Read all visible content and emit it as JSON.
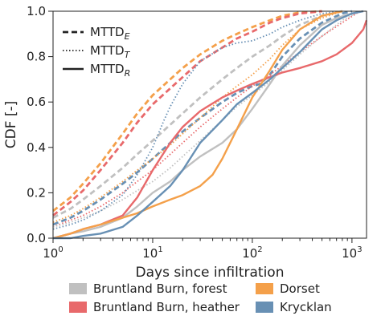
{
  "chart_data": {
    "type": "line",
    "xlabel": "Days since infiltration",
    "ylabel": "CDF [-]",
    "xscale": "log",
    "xlim": [
      1,
      1400
    ],
    "ylim": [
      0,
      1.0
    ],
    "xticks": [
      1,
      10,
      100,
      1000
    ],
    "xtick_labels": [
      {
        "base": "10",
        "exp": "0"
      },
      {
        "base": "10",
        "exp": "1"
      },
      {
        "base": "10",
        "exp": "2"
      },
      {
        "base": "10",
        "exp": "3"
      }
    ],
    "yticks": [
      "0.0",
      "0.2",
      "0.4",
      "0.6",
      "0.8",
      "1.0"
    ],
    "grid": false,
    "style_legend": [
      {
        "base": "MTTD",
        "sub": "E",
        "dash": "dashed"
      },
      {
        "base": "MTTD",
        "sub": "T",
        "dash": "dotted"
      },
      {
        "base": "MTTD",
        "sub": "R",
        "dash": "solid"
      }
    ],
    "color_legend": [
      {
        "label": "Bruntland Burn, forest",
        "color": "#c0c0c0"
      },
      {
        "label": "Bruntland Burn, heather",
        "color": "#e8696b"
      },
      {
        "label": "Dorset",
        "color": "#f4a04a"
      },
      {
        "label": "Krycklan",
        "color": "#6890b4"
      }
    ],
    "series": [
      {
        "site": "Dorset",
        "dash": "dashed",
        "color": "#f4a04a",
        "points": [
          [
            1,
            0.12
          ],
          [
            1.5,
            0.18
          ],
          [
            2,
            0.24
          ],
          [
            3,
            0.33
          ],
          [
            5,
            0.46
          ],
          [
            7,
            0.55
          ],
          [
            10,
            0.63
          ],
          [
            15,
            0.7
          ],
          [
            20,
            0.75
          ],
          [
            30,
            0.81
          ],
          [
            50,
            0.87
          ],
          [
            70,
            0.9
          ],
          [
            100,
            0.93
          ],
          [
            150,
            0.96
          ],
          [
            200,
            0.98
          ],
          [
            300,
            0.995
          ],
          [
            500,
            1.0
          ]
        ]
      },
      {
        "site": "Bruntland Burn, heather",
        "dash": "dashed",
        "color": "#e8696b",
        "points": [
          [
            1,
            0.1
          ],
          [
            1.5,
            0.16
          ],
          [
            2,
            0.21
          ],
          [
            3,
            0.3
          ],
          [
            5,
            0.42
          ],
          [
            7,
            0.51
          ],
          [
            10,
            0.59
          ],
          [
            15,
            0.66
          ],
          [
            20,
            0.71
          ],
          [
            30,
            0.78
          ],
          [
            50,
            0.84
          ],
          [
            70,
            0.88
          ],
          [
            100,
            0.91
          ],
          [
            150,
            0.95
          ],
          [
            200,
            0.97
          ],
          [
            300,
            0.99
          ],
          [
            500,
            1.0
          ]
        ]
      },
      {
        "site": "Bruntland Burn, forest",
        "dash": "dashed",
        "color": "#c0c0c0",
        "points": [
          [
            1,
            0.09
          ],
          [
            1.5,
            0.13
          ],
          [
            2,
            0.17
          ],
          [
            3,
            0.23
          ],
          [
            5,
            0.31
          ],
          [
            7,
            0.37
          ],
          [
            10,
            0.43
          ],
          [
            15,
            0.5
          ],
          [
            20,
            0.55
          ],
          [
            30,
            0.62
          ],
          [
            50,
            0.7
          ],
          [
            70,
            0.75
          ],
          [
            100,
            0.8
          ],
          [
            150,
            0.85
          ],
          [
            200,
            0.89
          ],
          [
            300,
            0.94
          ],
          [
            500,
            0.98
          ],
          [
            800,
            1.0
          ]
        ]
      },
      {
        "site": "Krycklan",
        "dash": "dashed",
        "color": "#6890b4",
        "points": [
          [
            1,
            0.06
          ],
          [
            1.5,
            0.09
          ],
          [
            2,
            0.12
          ],
          [
            3,
            0.17
          ],
          [
            5,
            0.24
          ],
          [
            7,
            0.29
          ],
          [
            10,
            0.35
          ],
          [
            15,
            0.42
          ],
          [
            20,
            0.47
          ],
          [
            30,
            0.53
          ],
          [
            50,
            0.6
          ],
          [
            70,
            0.64
          ],
          [
            100,
            0.67
          ],
          [
            120,
            0.68
          ],
          [
            150,
            0.72
          ],
          [
            200,
            0.8
          ],
          [
            300,
            0.88
          ],
          [
            500,
            0.95
          ],
          [
            800,
            0.99
          ],
          [
            1000,
            1.0
          ]
        ]
      },
      {
        "site": "Dorset",
        "dash": "dotted",
        "color": "#f4a04a",
        "points": [
          [
            1,
            0.07
          ],
          [
            1.5,
            0.1
          ],
          [
            2,
            0.13
          ],
          [
            3,
            0.18
          ],
          [
            5,
            0.25
          ],
          [
            7,
            0.3
          ],
          [
            10,
            0.35
          ],
          [
            15,
            0.41
          ],
          [
            20,
            0.46
          ],
          [
            30,
            0.53
          ],
          [
            50,
            0.62
          ],
          [
            70,
            0.67
          ],
          [
            100,
            0.72
          ],
          [
            150,
            0.79
          ],
          [
            200,
            0.85
          ],
          [
            300,
            0.92
          ],
          [
            500,
            0.97
          ],
          [
            800,
            1.0
          ]
        ]
      },
      {
        "site": "Bruntland Burn, heather",
        "dash": "dotted",
        "color": "#e8696b",
        "points": [
          [
            1,
            0.05
          ],
          [
            1.5,
            0.08
          ],
          [
            2,
            0.1
          ],
          [
            3,
            0.14
          ],
          [
            5,
            0.2
          ],
          [
            7,
            0.25
          ],
          [
            10,
            0.3
          ],
          [
            15,
            0.37
          ],
          [
            20,
            0.42
          ],
          [
            30,
            0.49
          ],
          [
            50,
            0.57
          ],
          [
            70,
            0.62
          ],
          [
            100,
            0.67
          ],
          [
            150,
            0.72
          ],
          [
            200,
            0.76
          ],
          [
            300,
            0.82
          ],
          [
            500,
            0.89
          ],
          [
            800,
            0.95
          ],
          [
            1200,
            1.0
          ]
        ]
      },
      {
        "site": "Bruntland Burn, forest",
        "dash": "dotted",
        "color": "#c0c0c0",
        "points": [
          [
            1,
            0.05
          ],
          [
            1.5,
            0.07
          ],
          [
            2,
            0.09
          ],
          [
            3,
            0.12
          ],
          [
            5,
            0.17
          ],
          [
            7,
            0.21
          ],
          [
            10,
            0.25
          ],
          [
            15,
            0.31
          ],
          [
            20,
            0.36
          ],
          [
            30,
            0.43
          ],
          [
            50,
            0.52
          ],
          [
            70,
            0.58
          ],
          [
            100,
            0.63
          ],
          [
            150,
            0.69
          ],
          [
            200,
            0.74
          ],
          [
            300,
            0.81
          ],
          [
            500,
            0.89
          ],
          [
            800,
            0.96
          ],
          [
            1200,
            1.0
          ]
        ]
      },
      {
        "site": "Krycklan",
        "dash": "dotted",
        "color": "#6890b4",
        "points": [
          [
            1,
            0.04
          ],
          [
            1.5,
            0.06
          ],
          [
            2,
            0.08
          ],
          [
            3,
            0.12
          ],
          [
            5,
            0.19
          ],
          [
            7,
            0.28
          ],
          [
            10,
            0.4
          ],
          [
            13,
            0.52
          ],
          [
            15,
            0.58
          ],
          [
            20,
            0.68
          ],
          [
            30,
            0.78
          ],
          [
            50,
            0.84
          ],
          [
            70,
            0.86
          ],
          [
            100,
            0.87
          ],
          [
            150,
            0.9
          ],
          [
            200,
            0.93
          ],
          [
            300,
            0.96
          ],
          [
            500,
            0.99
          ],
          [
            800,
            1.0
          ]
        ]
      },
      {
        "site": "Bruntland Burn, forest",
        "dash": "solid",
        "color": "#c0c0c0",
        "points": [
          [
            1,
            0.0
          ],
          [
            1.5,
            0.02
          ],
          [
            2,
            0.03
          ],
          [
            3,
            0.05
          ],
          [
            5,
            0.09
          ],
          [
            7,
            0.14
          ],
          [
            10,
            0.2
          ],
          [
            15,
            0.25
          ],
          [
            20,
            0.3
          ],
          [
            30,
            0.36
          ],
          [
            50,
            0.42
          ],
          [
            70,
            0.48
          ],
          [
            100,
            0.57
          ],
          [
            150,
            0.68
          ],
          [
            200,
            0.76
          ],
          [
            300,
            0.85
          ],
          [
            400,
            0.9
          ],
          [
            500,
            0.94
          ],
          [
            700,
            0.97
          ],
          [
            1000,
            0.99
          ],
          [
            1300,
            1.0
          ]
        ]
      },
      {
        "site": "Bruntland Burn, heather",
        "dash": "solid",
        "color": "#e8696b",
        "points": [
          [
            1,
            0.0
          ],
          [
            1.5,
            0.02
          ],
          [
            2,
            0.04
          ],
          [
            3,
            0.06
          ],
          [
            5,
            0.1
          ],
          [
            7,
            0.18
          ],
          [
            10,
            0.3
          ],
          [
            15,
            0.42
          ],
          [
            20,
            0.49
          ],
          [
            30,
            0.56
          ],
          [
            50,
            0.62
          ],
          [
            70,
            0.65
          ],
          [
            100,
            0.68
          ],
          [
            150,
            0.71
          ],
          [
            200,
            0.73
          ],
          [
            300,
            0.75
          ],
          [
            500,
            0.78
          ],
          [
            700,
            0.81
          ],
          [
            1000,
            0.86
          ],
          [
            1300,
            0.92
          ],
          [
            1400,
            0.96
          ]
        ]
      },
      {
        "site": "Dorset",
        "dash": "solid",
        "color": "#f4a04a",
        "points": [
          [
            1,
            0.0
          ],
          [
            1.5,
            0.02
          ],
          [
            2,
            0.04
          ],
          [
            3,
            0.06
          ],
          [
            5,
            0.09
          ],
          [
            7,
            0.11
          ],
          [
            10,
            0.14
          ],
          [
            15,
            0.17
          ],
          [
            20,
            0.19
          ],
          [
            30,
            0.23
          ],
          [
            40,
            0.28
          ],
          [
            50,
            0.35
          ],
          [
            70,
            0.48
          ],
          [
            100,
            0.62
          ],
          [
            150,
            0.74
          ],
          [
            200,
            0.83
          ],
          [
            300,
            0.92
          ],
          [
            500,
            0.98
          ],
          [
            800,
            1.0
          ]
        ]
      },
      {
        "site": "Krycklan",
        "dash": "solid",
        "color": "#6890b4",
        "points": [
          [
            1,
            0.0
          ],
          [
            1.5,
            0.0
          ],
          [
            2,
            0.01
          ],
          [
            3,
            0.02
          ],
          [
            5,
            0.05
          ],
          [
            7,
            0.1
          ],
          [
            10,
            0.16
          ],
          [
            15,
            0.23
          ],
          [
            20,
            0.3
          ],
          [
            30,
            0.42
          ],
          [
            50,
            0.52
          ],
          [
            70,
            0.59
          ],
          [
            100,
            0.64
          ],
          [
            150,
            0.7
          ],
          [
            200,
            0.75
          ],
          [
            300,
            0.82
          ],
          [
            500,
            0.92
          ],
          [
            700,
            0.96
          ],
          [
            1000,
            0.99
          ],
          [
            1300,
            1.0
          ]
        ]
      }
    ]
  }
}
